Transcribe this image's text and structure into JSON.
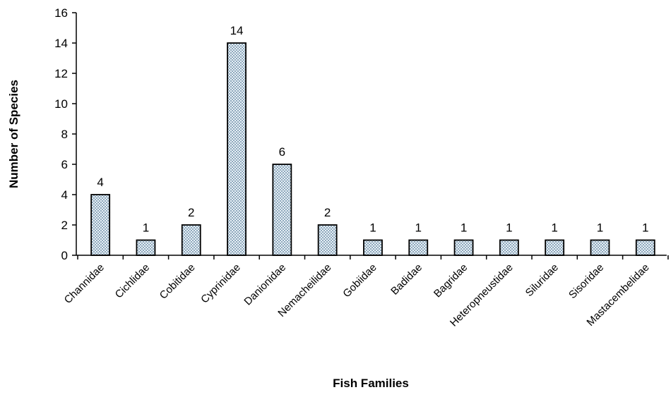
{
  "chart_data": {
    "type": "bar",
    "title": "",
    "xlabel": "Fish Families",
    "ylabel": "Number of Species",
    "ylim": [
      0,
      16
    ],
    "yticks": [
      0,
      2,
      4,
      6,
      8,
      10,
      12,
      14,
      16
    ],
    "grid": false,
    "categories": [
      "Channidae",
      "Cichlidae",
      "Cobitidae",
      "Cyprinidae",
      "Danionidae",
      "Nemacheilidae",
      "Gobiidae",
      "Badidae",
      "Bagridae",
      "Heteropneustidae",
      "Siluridae",
      "Sisoridae",
      "Mastacembelidae"
    ],
    "values": [
      4,
      1,
      2,
      14,
      6,
      2,
      1,
      1,
      1,
      1,
      1,
      1,
      1
    ],
    "data_labels": true,
    "bar_fill": "#c9dbe8",
    "bar_stroke": "#000000"
  }
}
